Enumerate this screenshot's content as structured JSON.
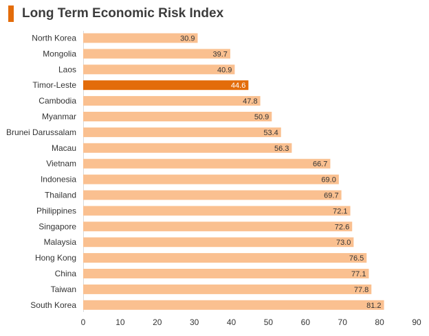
{
  "title": "Long Term Economic Risk Index",
  "colors": {
    "accent": "#e36c0a",
    "bar": "#fac090",
    "highlight": "#e36c0a",
    "text": "#333333",
    "axis": "#d9d9d9"
  },
  "chart_data": {
    "type": "bar",
    "orientation": "horizontal",
    "title": "Long Term Economic Risk Index",
    "xlabel": "",
    "ylabel": "",
    "xlim": [
      0,
      90
    ],
    "ticks": [
      0,
      10,
      20,
      30,
      40,
      50,
      60,
      70,
      80,
      90
    ],
    "tick_labels": [
      "0",
      "10",
      "20",
      "30",
      "40",
      "50",
      "60",
      "70",
      "80",
      "90"
    ],
    "grid": false,
    "highlight_category": "Timor-Leste",
    "categories": [
      "North Korea",
      "Mongolia",
      "Laos",
      "Timor-Leste",
      "Cambodia",
      "Myanmar",
      "Brunei Darussalam",
      "Macau",
      "Vietnam",
      "Indonesia",
      "Thailand",
      "Philippines",
      "Singapore",
      "Malaysia",
      "Hong Kong",
      "China",
      "Taiwan",
      "South Korea"
    ],
    "values": [
      30.9,
      39.7,
      40.9,
      44.6,
      47.8,
      50.9,
      53.4,
      56.3,
      66.7,
      69.0,
      69.7,
      72.1,
      72.6,
      73.0,
      76.5,
      77.1,
      77.8,
      81.2
    ],
    "value_labels": [
      "30.9",
      "39.7",
      "40.9",
      "44.6",
      "47.8",
      "50.9",
      "53.4",
      "56.3",
      "66.7",
      "69.0",
      "69.7",
      "72.1",
      "72.6",
      "73.0",
      "76.5",
      "77.1",
      "77.8",
      "81.2"
    ]
  }
}
